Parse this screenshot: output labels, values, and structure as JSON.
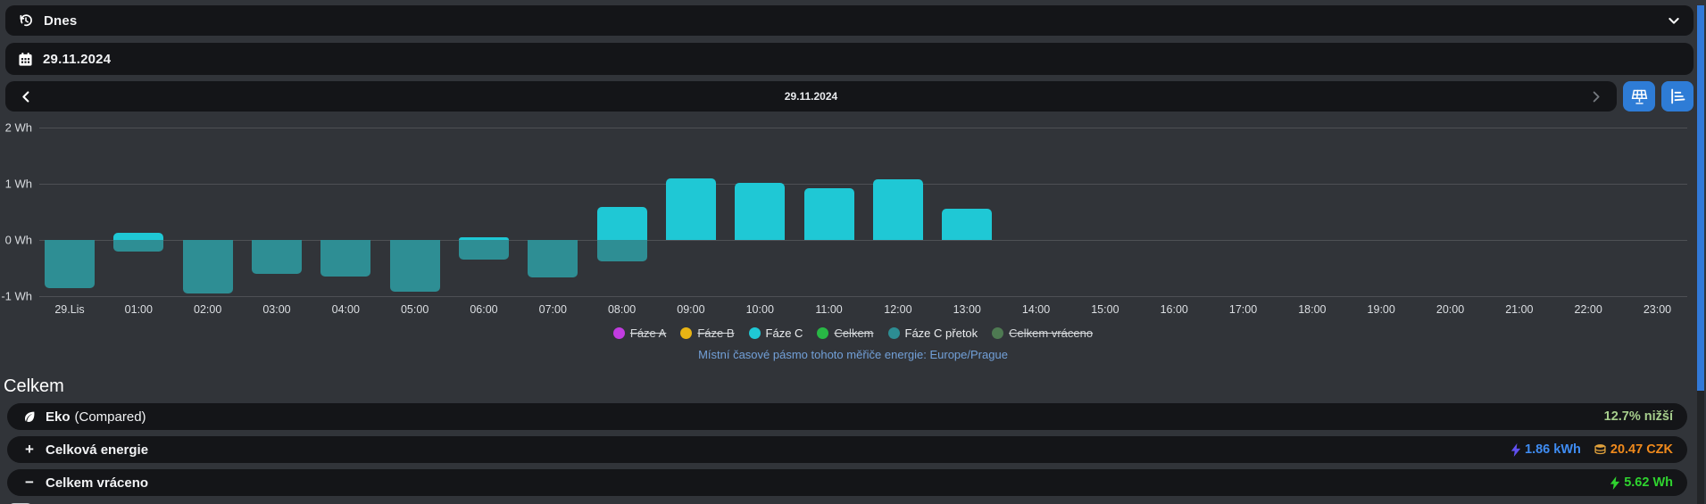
{
  "toolbar": {
    "preset_label": "Dnes",
    "date_value": "29.11.2024"
  },
  "nav": {
    "date_label": "29.11.2024",
    "prev_icon": "chevron-left-icon",
    "next_icon": "chevron-right-icon",
    "buttons": [
      "solar-panel-view-button",
      "chart-view-button"
    ]
  },
  "chart_data": {
    "type": "bar",
    "title": "",
    "xlabel": "",
    "ylabel": "Wh",
    "ylim": [
      -1,
      2
    ],
    "yticks": [
      "2 Wh",
      "1 Wh",
      "0 Wh",
      "-1 Wh"
    ],
    "grid": true,
    "categories": [
      "29.Lis",
      "01:00",
      "02:00",
      "03:00",
      "04:00",
      "05:00",
      "06:00",
      "07:00",
      "08:00",
      "09:00",
      "10:00",
      "11:00",
      "12:00",
      "13:00",
      "14:00",
      "15:00",
      "16:00",
      "17:00",
      "18:00",
      "19:00",
      "20:00",
      "21:00",
      "22:00",
      "23:00"
    ],
    "series": [
      {
        "name": "Fáze C",
        "color": "#1fc8d5",
        "values": [
          0,
          0.13,
          0,
          0,
          0,
          0,
          0.05,
          0,
          0.59,
          1.1,
          1.02,
          0.92,
          1.08,
          0.56,
          0,
          0,
          0,
          0,
          0,
          0,
          0,
          0,
          0,
          0
        ]
      },
      {
        "name": "Fáze C přetok",
        "color": "#2e8e94",
        "values": [
          -0.86,
          -0.21,
          -0.95,
          -0.6,
          -0.65,
          -0.92,
          -0.35,
          -0.66,
          -0.38,
          0,
          0,
          0,
          0,
          0,
          0,
          0,
          0,
          0,
          0,
          0,
          0,
          0,
          0,
          0
        ]
      }
    ],
    "legend_position": "bottom"
  },
  "legend": {
    "items": [
      {
        "label": "Fáze A",
        "color": "#c13ce0",
        "active": false
      },
      {
        "label": "Fáze B",
        "color": "#e8b414",
        "active": false
      },
      {
        "label": "Fáze C",
        "color": "#1fc8d5",
        "active": true
      },
      {
        "label": "Celkem",
        "color": "#28b845",
        "active": false
      },
      {
        "label": "Fáze C přetok",
        "color": "#2d8d93",
        "active": true
      },
      {
        "label": "Celkem vráceno",
        "color": "#4e7a52",
        "active": false
      }
    ]
  },
  "timezone_note": "Místní časové pásmo tohoto měřiče energie: Europe/Prague",
  "summary": {
    "heading": "Celkem",
    "rows": [
      {
        "icon": "leaf-icon",
        "label": "Eko",
        "sublabel": "(Compared)",
        "value": "12.7% nižší",
        "value_color": "#a6cd8c"
      },
      {
        "icon": "plus-icon",
        "label": "Celková energie",
        "value_energy": "1.86 kWh",
        "energy_color": "#3f8cf2",
        "bolt_color": "#6050f0",
        "value_cost": "20.47 CZK",
        "cost_color": "#f08a1c",
        "coins_color": "#e2a23c"
      },
      {
        "icon": "minus-icon",
        "label": "Celkem vráceno",
        "value": "5.62 Wh",
        "value_color": "#2fd32f"
      }
    ]
  },
  "colors": {
    "background": "#313439",
    "panel": "#141518",
    "accent_blue_button": "#2e7cd6",
    "scrollbar_thumb": "#3279d8"
  }
}
